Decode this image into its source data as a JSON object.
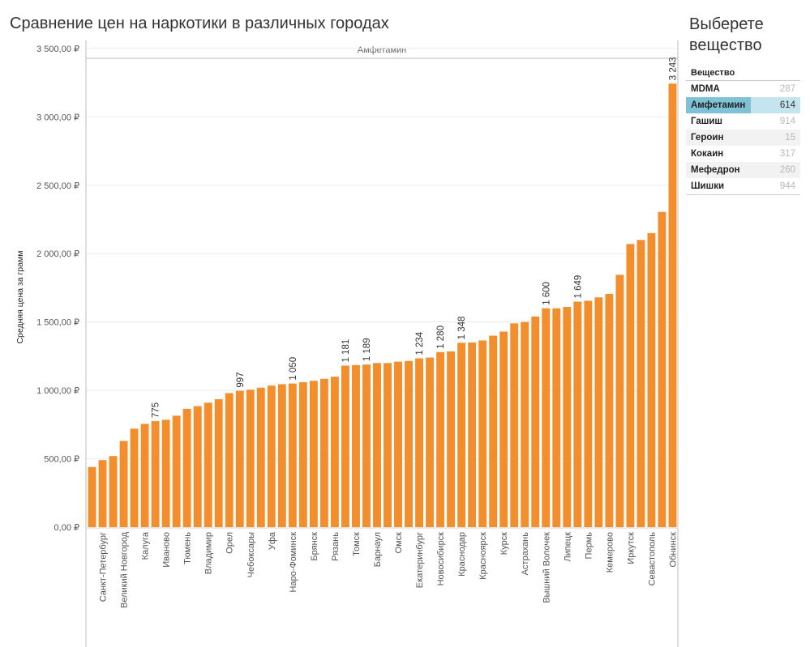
{
  "title": "Сравнение цен на наркотики в различных городах",
  "side_panel": {
    "title_line1": "Выберете",
    "title_line2": "вещество",
    "header": "Вещество",
    "items": [
      {
        "label": "MDMA",
        "count": "287",
        "selected": false,
        "share": 0
      },
      {
        "label": "Амфетамин",
        "count": "614",
        "selected": true,
        "share": 0.57
      },
      {
        "label": "Гашиш",
        "count": "914",
        "selected": false,
        "share": 0
      },
      {
        "label": "Героин",
        "count": "15",
        "selected": false,
        "share": 0
      },
      {
        "label": "Кокаин",
        "count": "317",
        "selected": false,
        "share": 0
      },
      {
        "label": "Мефедрон",
        "count": "260",
        "selected": false,
        "share": 0
      },
      {
        "label": "Шишки",
        "count": "944",
        "selected": false,
        "share": 0
      }
    ]
  },
  "colors": {
    "bar": "#f28e2b",
    "grid": "#ececec",
    "axis": "#bdbdbd",
    "text": "#555555",
    "selected_fill": "#7fc2d6",
    "selected_bg": "#c4e4ef"
  },
  "chart_data": {
    "type": "bar",
    "panel_label": "Амфетамин",
    "ylabel": "Средняя цена за грамм",
    "ylim": [
      0,
      3700
    ],
    "yticks": [
      0,
      500,
      1000,
      1500,
      2000,
      2500,
      3000,
      3500
    ],
    "ytick_labels": [
      "0,00 ₽",
      "500,00 ₽",
      "1 000,00 ₽",
      "1 500,00 ₽",
      "2 000,00 ₽",
      "2 500,00 ₽",
      "3 000,00 ₽",
      "3 500,00 ₽"
    ],
    "categories": [
      "",
      "Санкт-Петербург",
      "",
      "Великий Новгород",
      "",
      "Калуга",
      "",
      "Иваново",
      "",
      "Тюмень",
      "",
      "Владимир",
      "",
      "Орел",
      "",
      "Чебоксары",
      "",
      "Уфа",
      "",
      "Наро-Фоминск",
      "",
      "Брянск",
      "",
      "Рязань",
      "",
      "Томск",
      "",
      "Барнаул",
      "",
      "Омск",
      "",
      "Екатеринбург",
      "",
      "Новосибирск",
      "",
      "Краснодар",
      "",
      "Красноярск",
      "",
      "Курск",
      "",
      "Астрахань",
      "",
      "Вышний Волочек",
      "",
      "Липецк",
      "",
      "Пермь",
      "",
      "Кемерово",
      "",
      "Иркутск",
      "",
      "Севастополь",
      "",
      "Обнинск"
    ],
    "values": [
      440,
      490,
      520,
      630,
      720,
      755,
      775,
      785,
      815,
      865,
      885,
      910,
      935,
      980,
      997,
      1005,
      1020,
      1035,
      1045,
      1050,
      1060,
      1070,
      1085,
      1100,
      1181,
      1185,
      1189,
      1200,
      1200,
      1210,
      1215,
      1234,
      1240,
      1280,
      1285,
      1348,
      1350,
      1365,
      1400,
      1430,
      1490,
      1500,
      1540,
      1600,
      1600,
      1610,
      1649,
      1655,
      1680,
      1705,
      1845,
      2070,
      2100,
      2150,
      2305,
      3243
    ],
    "data_labels": {
      "6": "775",
      "14": "997",
      "19": "1 050",
      "24": "1 181",
      "26": "1 189",
      "31": "1 234",
      "33": "1 280",
      "35": "1 348",
      "43": "1 600",
      "46": "1 649",
      "55": "3 243"
    }
  }
}
